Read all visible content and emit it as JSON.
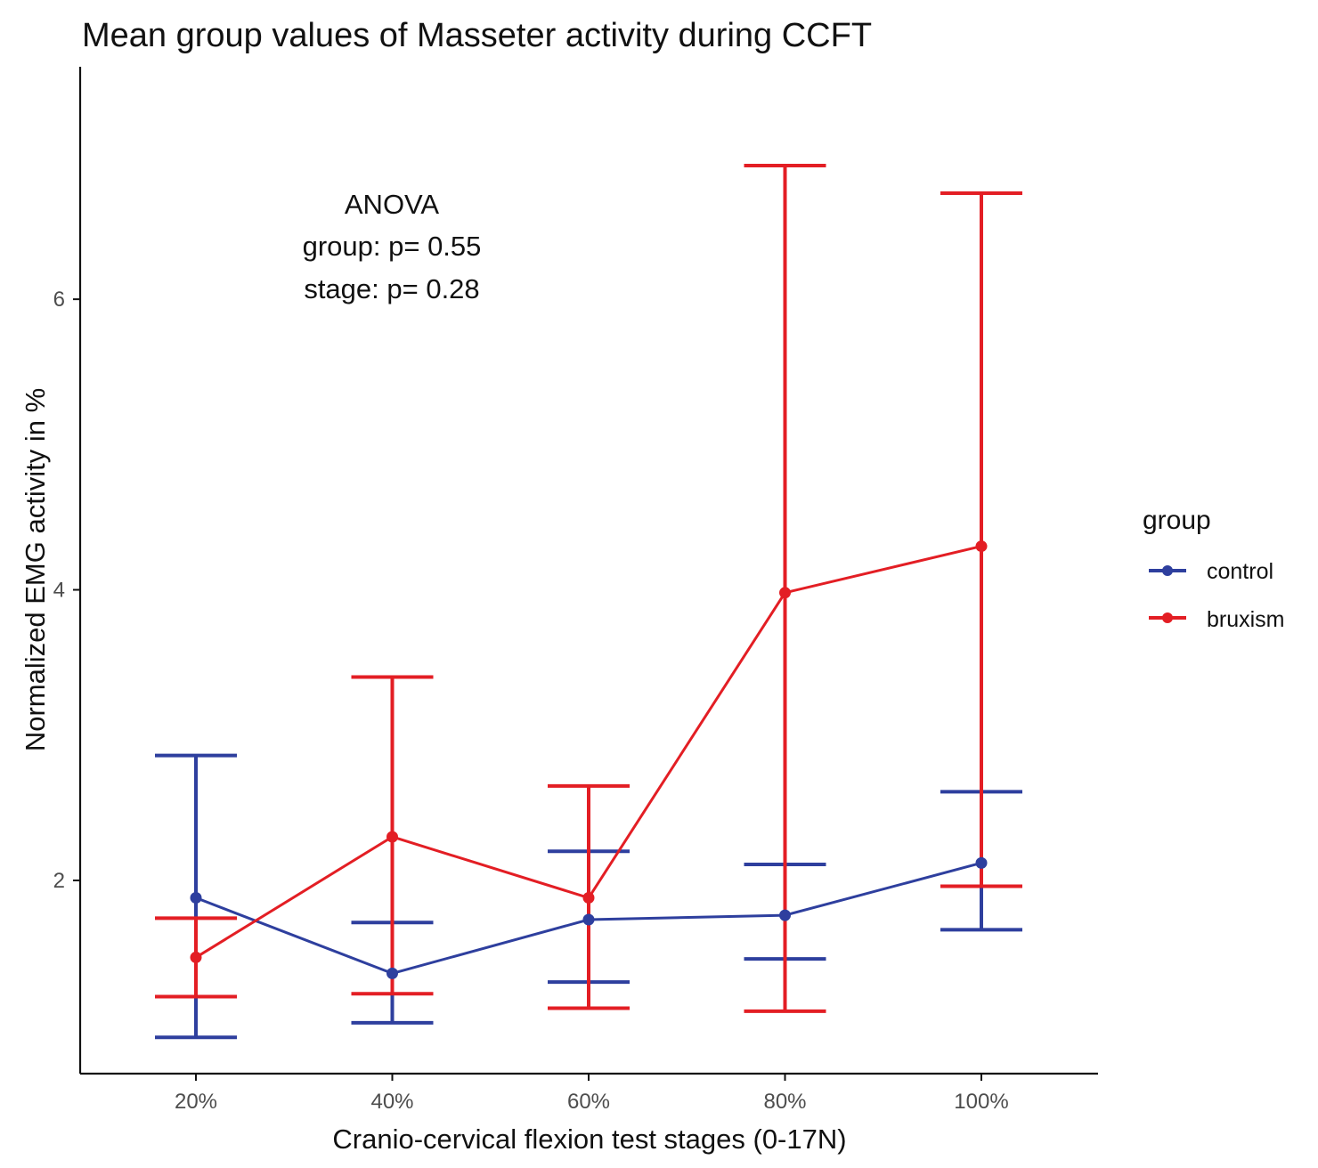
{
  "chart_data": {
    "type": "line",
    "title": "Mean group values of Masseter activity during CCFT",
    "xlabel": "Cranio-cervical flexion test stages (0-17N)",
    "ylabel": "Normalized EMG activity in %",
    "categories": [
      "20%",
      "40%",
      "60%",
      "80%",
      "100%"
    ],
    "yticks": [
      2,
      4,
      6
    ],
    "ylim": [
      0.67,
      7.6
    ],
    "grid": false,
    "legend_position": "right",
    "legend": {
      "title": "group",
      "items": [
        "control",
        "bruxism"
      ]
    },
    "annotation": {
      "lines": [
        "ANOVA",
        "group: p= 0.55",
        "stage: p= 0.28"
      ]
    },
    "series": [
      {
        "name": "control",
        "color": "#2e3f9e",
        "values": [
          1.88,
          1.36,
          1.73,
          1.76,
          2.12
        ],
        "error_low": [
          0.92,
          1.02,
          1.3,
          1.46,
          1.66
        ],
        "error_high": [
          2.86,
          1.71,
          2.2,
          2.11,
          2.61
        ]
      },
      {
        "name": "bruxism",
        "color": "#e31e24",
        "values": [
          1.47,
          2.3,
          1.88,
          3.98,
          4.3
        ],
        "error_low": [
          1.2,
          1.22,
          1.12,
          1.1,
          1.96
        ],
        "error_high": [
          1.74,
          3.4,
          2.65,
          6.92,
          6.73
        ]
      }
    ]
  }
}
